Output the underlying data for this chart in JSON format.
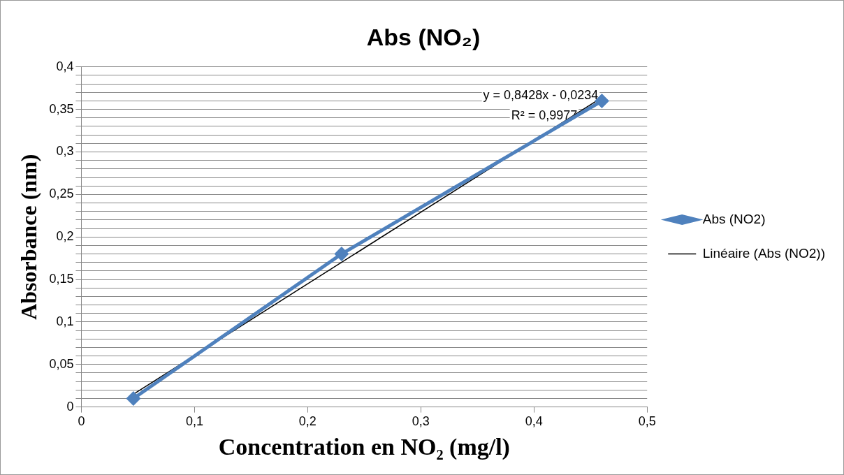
{
  "chart_data": {
    "type": "line",
    "title": "Abs (NO₂)",
    "xlabel": "Concentration en NO₂ (mg/l)",
    "ylabel": "Absorbance (nm)",
    "series": [
      {
        "name": "Abs (NO2)",
        "color": "#4f81bd",
        "x": [
          0.046,
          0.23,
          0.46
        ],
        "values": [
          0.01,
          0.18,
          0.36
        ],
        "marker": "diamond"
      },
      {
        "name": "Linéaire (Abs (NO2))",
        "color": "#000000",
        "x": [
          0.046,
          0.46
        ],
        "values": [
          0.015,
          0.364
        ],
        "marker": "none"
      }
    ],
    "xlim": [
      0,
      0.5
    ],
    "xticks": [
      0,
      {
        "value": 0.1,
        "label": "0,1"
      },
      {
        "value": 0.2,
        "label": "0,2"
      },
      {
        "value": 0.3,
        "label": "0,3"
      },
      {
        "value": 0.4,
        "label": "0,4"
      },
      {
        "value": 0.5,
        "label": "0,5"
      }
    ],
    "ylim": [
      0,
      0.4
    ],
    "yticks": [
      0,
      {
        "value": 0.01,
        "label": null
      },
      {
        "value": 0.02,
        "label": null
      },
      {
        "value": 0.03,
        "label": null
      },
      {
        "value": 0.04,
        "label": null
      },
      {
        "value": 0.05,
        "label": "0,05"
      },
      {
        "value": 0.06,
        "label": null
      },
      {
        "value": 0.07,
        "label": null
      },
      {
        "value": 0.08,
        "label": null
      },
      {
        "value": 0.09,
        "label": null
      },
      {
        "value": 0.1,
        "label": "0,1"
      },
      {
        "value": 0.11,
        "label": null
      },
      {
        "value": 0.12,
        "label": null
      },
      {
        "value": 0.13,
        "label": null
      },
      {
        "value": 0.14,
        "label": null
      },
      {
        "value": 0.15,
        "label": "0,15"
      },
      {
        "value": 0.16,
        "label": null
      },
      {
        "value": 0.17,
        "label": null
      },
      {
        "value": 0.18,
        "label": null
      },
      {
        "value": 0.19,
        "label": null
      },
      {
        "value": 0.2,
        "label": "0,2"
      },
      {
        "value": 0.21,
        "label": null
      },
      {
        "value": 0.22,
        "label": null
      },
      {
        "value": 0.23,
        "label": null
      },
      {
        "value": 0.24,
        "label": null
      },
      {
        "value": 0.25,
        "label": "0,25"
      },
      {
        "value": 0.26,
        "label": null
      },
      {
        "value": 0.27,
        "label": null
      },
      {
        "value": 0.28,
        "label": null
      },
      {
        "value": 0.29,
        "label": null
      },
      {
        "value": 0.3,
        "label": "0,3"
      },
      {
        "value": 0.31,
        "label": null
      },
      {
        "value": 0.32,
        "label": null
      },
      {
        "value": 0.33,
        "label": null
      },
      {
        "value": 0.34,
        "label": null
      },
      {
        "value": 0.35,
        "label": "0,35"
      },
      {
        "value": 0.36,
        "label": null
      },
      {
        "value": 0.37,
        "label": null
      },
      {
        "value": 0.38,
        "label": null
      },
      {
        "value": 0.39,
        "label": null
      },
      {
        "value": 0.4,
        "label": "0,4"
      }
    ],
    "annotations": [
      "y = 0,8428x - 0,0234",
      "R² = 0,9977"
    ],
    "grid": "y",
    "legend": "right"
  }
}
